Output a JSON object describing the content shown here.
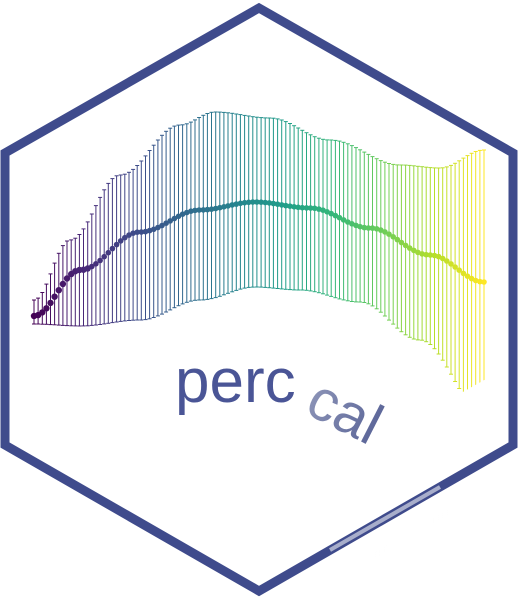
{
  "logo": {
    "word_main": "perc",
    "word_tail": "cal",
    "border_color": "#3f4b8c",
    "text_color_main": "#4a5596",
    "text_color_tail": "#7d86ad",
    "shine_color": "#ffffff"
  },
  "plot": {
    "type": "errorbar-curve",
    "palette": "viridis",
    "palette_stops": [
      "#440154",
      "#482878",
      "#3e4a89",
      "#31688e",
      "#26828e",
      "#1f9e89",
      "#35b779",
      "#6ece58",
      "#b5de2b",
      "#fde725"
    ]
  }
}
